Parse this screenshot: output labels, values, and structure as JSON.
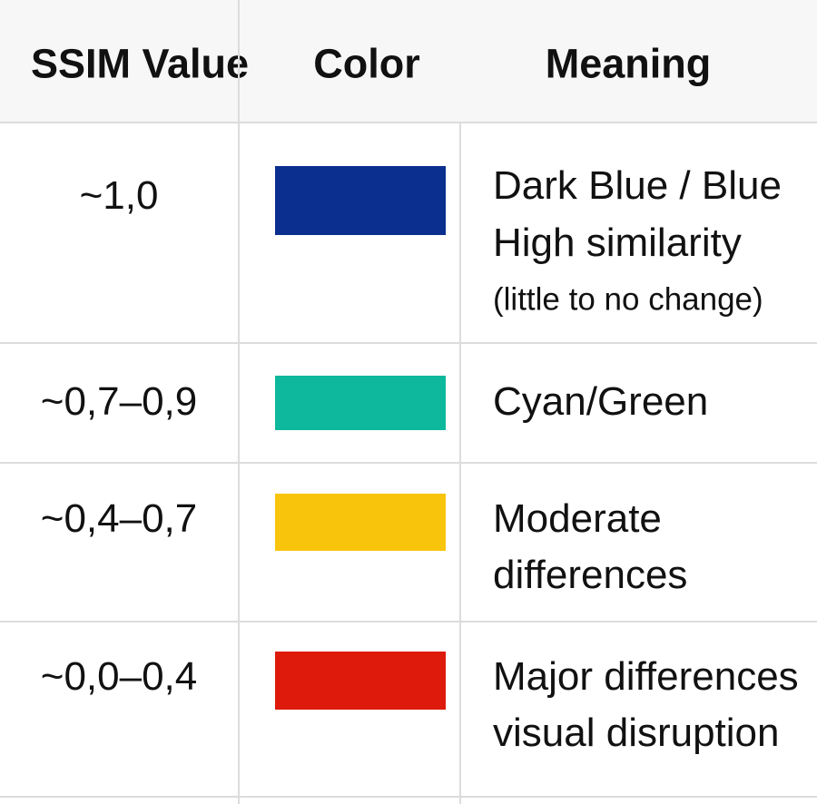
{
  "table": {
    "headers": [
      "SSIM Value",
      "Color",
      "Meaning"
    ],
    "rows": [
      {
        "ssim": "~1,0",
        "color": "#0a2f8e",
        "meaning": [
          "Dark Blue / Blue",
          "High similarity",
          "(little to no change)"
        ]
      },
      {
        "ssim": "~0,7–0,9",
        "color": "#0db89c",
        "meaning": [
          "Cyan/Green"
        ]
      },
      {
        "ssim": "~0,4–0,7",
        "color": "#f9c40c",
        "meaning": [
          "Moderate",
          "differences"
        ]
      },
      {
        "ssim": "~0,0–0,4",
        "color": "#dd1a0b",
        "meaning": [
          "Major differences",
          "visual disruption"
        ]
      }
    ]
  }
}
